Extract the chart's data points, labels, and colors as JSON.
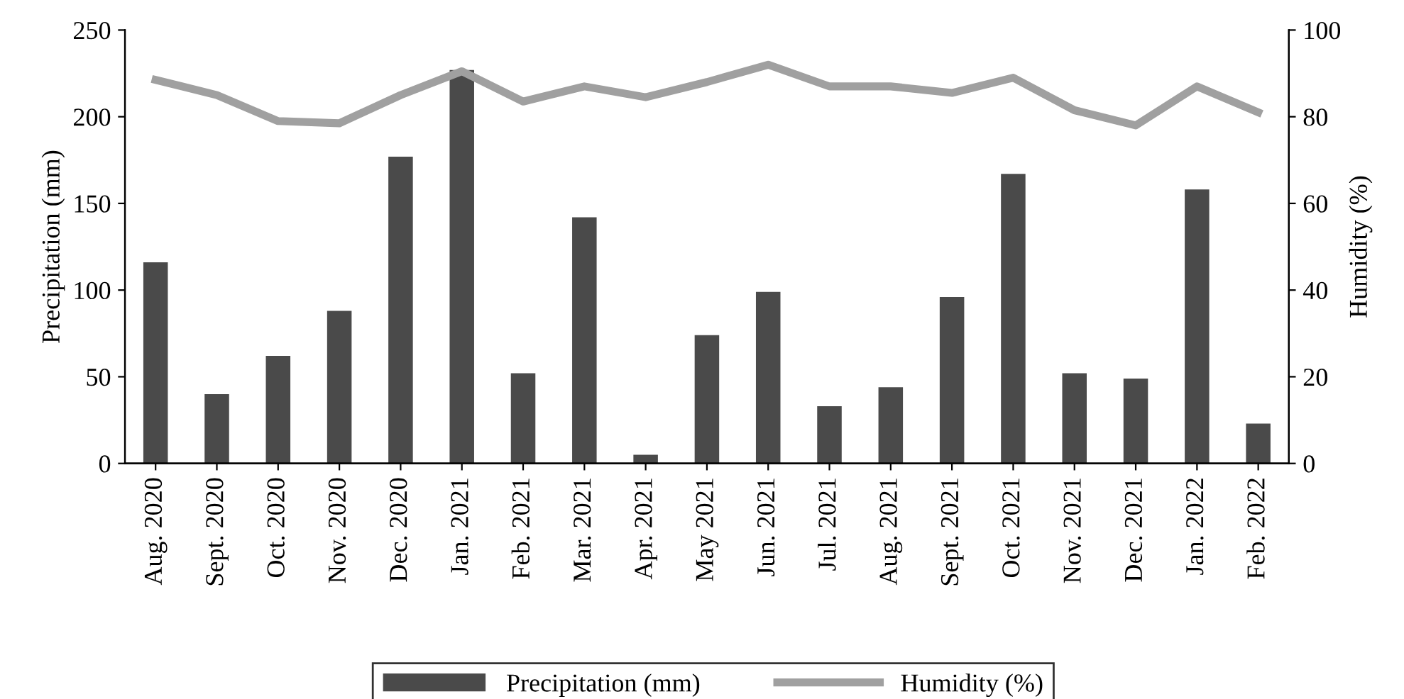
{
  "chart_data": {
    "type": "bar",
    "ylabel": "Precipitation (mm)",
    "y2label": "Humidity (%)",
    "categories": [
      "Aug. 2020",
      "Sept. 2020",
      "Oct. 2020",
      "Nov. 2020",
      "Dec. 2020",
      "Jan. 2021",
      "Feb. 2021",
      "Mar. 2021",
      "Apr. 2021",
      "May 2021",
      "Jun. 2021",
      "Jul. 2021",
      "Aug. 2021",
      "Sept. 2021",
      "Oct. 2021",
      "Nov. 2021",
      "Dec. 2021",
      "Jan. 2022",
      "Feb. 2022"
    ],
    "series": [
      {
        "name": "Precipitation (mm)",
        "color": "#4a4a4a",
        "values": [
          116,
          40,
          62,
          88,
          177,
          227,
          52,
          142,
          5,
          74,
          99,
          33,
          44,
          96,
          167,
          52,
          49,
          158,
          23
        ]
      },
      {
        "name": "Humidity (%)",
        "type": "line",
        "axis": "y2",
        "color": "#a0a0a0",
        "values": [
          88.5,
          85,
          79,
          78.5,
          85,
          90.5,
          83.5,
          87,
          84.5,
          88,
          92,
          87,
          87,
          85.5,
          89,
          81.5,
          78,
          87,
          81
        ]
      }
    ],
    "ylim": [
      0,
      250
    ],
    "yticks": [
      0,
      50,
      100,
      150,
      200,
      250
    ],
    "y2lim": [
      0,
      100
    ],
    "y2ticks": [
      0,
      20,
      40,
      60,
      80,
      100
    ],
    "grid": false,
    "legend": "bottom",
    "marker": "none",
    "line_style": "solid"
  }
}
